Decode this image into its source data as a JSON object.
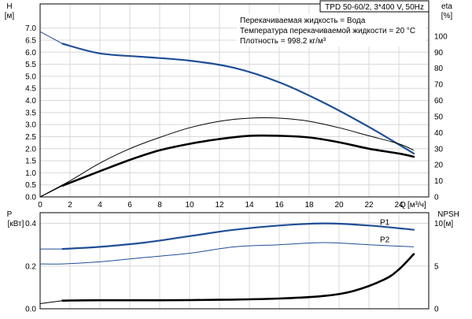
{
  "title": "TPD 50-60/2, 3*400 V, 50Hz",
  "info": {
    "line1": "Перекачиваемая жидкость = Вода",
    "line2": "Температура перекачиваемой жидкости = 20 °C",
    "line3": "Плотность = 998.2 кг/м³"
  },
  "colors": {
    "blue": "#1f4e96",
    "black": "#000000",
    "grid": "#d8d8d8"
  },
  "chart_data": [
    {
      "type": "line",
      "xlabel_name": "Q",
      "xlabel_unit": "[м³/ч]",
      "xticks": [
        "0",
        "2",
        "4",
        "6",
        "8",
        "10",
        "12",
        "14",
        "16",
        "18",
        "20",
        "22",
        "24"
      ],
      "xlim": [
        0,
        26
      ],
      "left_axis": {
        "name": "H",
        "unit": "[м]",
        "ylim": [
          0,
          8
        ],
        "ticks": [
          "0.0",
          "0.5",
          "1.0",
          "1.5",
          "2.0",
          "2.5",
          "3.0",
          "3.5",
          "4.0",
          "4.5",
          "5.0",
          "5.5",
          "6.0",
          "6.5",
          "7.0"
        ]
      },
      "right_axis": {
        "name": "eta",
        "unit": "[%]",
        "ylim": [
          0,
          120
        ],
        "ticks": [
          "0",
          "10",
          "20",
          "30",
          "40",
          "50",
          "60",
          "70",
          "80",
          "90",
          "100"
        ]
      },
      "grid": true,
      "series": [
        {
          "axis": "left",
          "color": "#1f4e96",
          "width": 2.2,
          "dashed_head": true,
          "x": [
            0,
            1.5,
            4,
            7,
            10,
            13,
            16,
            19,
            22,
            25
          ],
          "y": [
            6.85,
            6.35,
            5.95,
            5.8,
            5.65,
            5.35,
            4.75,
            3.9,
            2.9,
            1.8
          ]
        },
        {
          "axis": "right",
          "color": "#000000",
          "width": 1,
          "x": [
            0,
            2,
            4,
            6,
            8,
            10,
            12,
            14,
            16,
            18,
            20,
            22,
            24,
            25
          ],
          "y": [
            0,
            10,
            21,
            30,
            37,
            43,
            47,
            49,
            49,
            47,
            43,
            38,
            33,
            29
          ]
        },
        {
          "axis": "right",
          "color": "#000000",
          "width": 2.6,
          "dashed_head": true,
          "x": [
            0,
            1.5,
            4,
            6,
            8,
            10,
            12,
            14,
            16,
            18,
            20,
            22,
            24,
            25
          ],
          "y": [
            0,
            7,
            16,
            23,
            29,
            33,
            36,
            38,
            38,
            37,
            34,
            30,
            27,
            25
          ]
        }
      ]
    },
    {
      "type": "line",
      "left_axis": {
        "name": "P",
        "unit": "[кВт]",
        "ylim": [
          0,
          0.45
        ],
        "ticks": [
          "0.0",
          "0.2",
          "0.4"
        ]
      },
      "right_axis": {
        "name": "NPSH",
        "unit": "[м]",
        "ylim": [
          0,
          11.25
        ],
        "ticks": [
          "0",
          "5",
          "10"
        ]
      },
      "xlim": [
        0,
        26
      ],
      "grid": true,
      "series": [
        {
          "name": "P1",
          "axis": "left",
          "color": "#1f4e96",
          "width": 2.2,
          "dashed_head": true,
          "x": [
            0,
            1.5,
            4,
            7,
            10,
            13,
            16,
            19,
            22,
            25
          ],
          "y": [
            0.28,
            0.28,
            0.29,
            0.31,
            0.34,
            0.37,
            0.39,
            0.4,
            0.39,
            0.37
          ]
        },
        {
          "name": "P2",
          "axis": "left",
          "color": "#1f4e96",
          "width": 1,
          "x": [
            0,
            1.5,
            4,
            7,
            10,
            13,
            16,
            19,
            22,
            25
          ],
          "y": [
            0.21,
            0.21,
            0.22,
            0.24,
            0.26,
            0.29,
            0.3,
            0.31,
            0.3,
            0.29
          ]
        },
        {
          "name": "",
          "axis": "right",
          "color": "#000000",
          "width": 2.6,
          "dashed_head": true,
          "x": [
            0,
            1.5,
            4,
            8,
            12,
            16,
            19,
            21,
            23,
            24,
            25
          ],
          "y": [
            0.6,
            0.95,
            1.0,
            1.0,
            1.05,
            1.2,
            1.5,
            2.1,
            3.4,
            4.6,
            6.4
          ]
        }
      ]
    }
  ]
}
